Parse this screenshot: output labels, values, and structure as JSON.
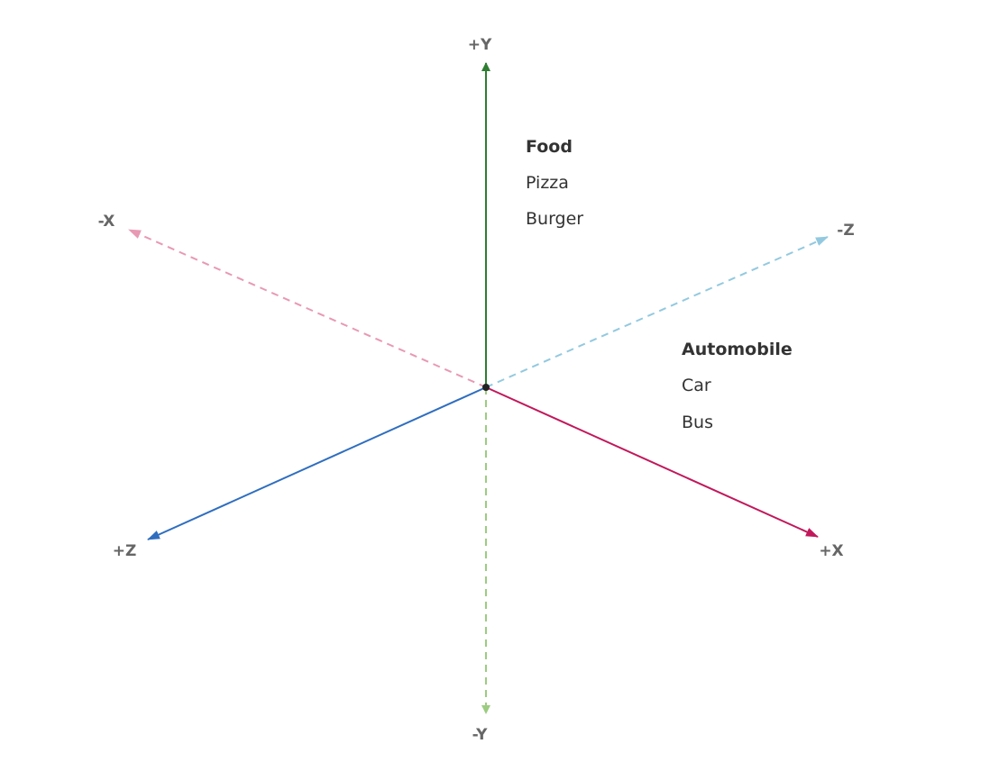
{
  "axes": [
    {
      "label": "+Y"
    },
    {
      "label": "-Y"
    },
    {
      "label": "+X"
    },
    {
      "label": "-X"
    },
    {
      "label": "+Z"
    },
    {
      "label": "-Z"
    }
  ],
  "groups": [
    {
      "title": "Food",
      "items": [
        "Pizza",
        "Burger"
      ]
    },
    {
      "title": "Automobile",
      "items": [
        "Car",
        "Bus"
      ]
    }
  ]
}
